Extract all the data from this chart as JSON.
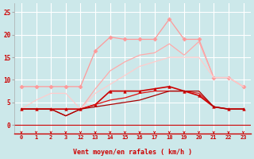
{
  "bg_color": "#cce8ea",
  "grid_color": "#ffffff",
  "xlabel": "Vent moyen/en rafales ( km/h )",
  "xlabel_color": "#cc0000",
  "tick_color": "#cc0000",
  "ylim": [
    -2,
    27
  ],
  "yticks": [
    0,
    5,
    10,
    15,
    20,
    25
  ],
  "x_labels": [
    "0",
    "1",
    "2",
    "3",
    "12",
    "13",
    "14",
    "15",
    "16",
    "17",
    "18",
    "19",
    "20",
    "21",
    "22",
    "23"
  ],
  "x_positions": [
    0,
    1,
    2,
    3,
    4,
    5,
    6,
    7,
    8,
    9,
    10,
    11,
    12,
    13,
    14,
    15
  ],
  "lines": [
    {
      "name": "rafales_pink_marker",
      "color": "#ff9999",
      "linewidth": 0.9,
      "marker": "D",
      "markersize": 2.5,
      "x": [
        0,
        1,
        2,
        3,
        4,
        5,
        6,
        7,
        8,
        9,
        10,
        11,
        12,
        13,
        14,
        15
      ],
      "y": [
        8.5,
        8.5,
        8.5,
        8.5,
        8.5,
        16.5,
        19.5,
        19,
        19,
        19,
        23.5,
        19,
        19,
        10.5,
        10.5,
        8.5
      ]
    },
    {
      "name": "rafales_pink2",
      "color": "#ffaaaa",
      "linewidth": 0.9,
      "marker": null,
      "x": [
        0,
        1,
        2,
        3,
        4,
        5,
        6,
        7,
        8,
        9,
        10,
        11,
        12,
        13,
        14,
        15
      ],
      "y": [
        3.5,
        3.5,
        3.5,
        3.5,
        3.5,
        8,
        12,
        14,
        15.5,
        16,
        18,
        15.5,
        18.5,
        10.5,
        10.5,
        8.5
      ]
    },
    {
      "name": "moyen_light",
      "color": "#ffcccc",
      "linewidth": 0.9,
      "marker": null,
      "x": [
        0,
        1,
        2,
        3,
        4,
        5,
        6,
        7,
        8,
        9,
        10,
        11,
        12,
        13,
        14,
        15
      ],
      "y": [
        3.5,
        5.5,
        7,
        7,
        3.5,
        7,
        9,
        11,
        13,
        14,
        15,
        15,
        15,
        10.5,
        10.5,
        8.5
      ]
    },
    {
      "name": "moyen_dark_marker",
      "color": "#cc0000",
      "linewidth": 1.2,
      "marker": "^",
      "markersize": 2.5,
      "x": [
        0,
        1,
        2,
        3,
        4,
        5,
        6,
        7,
        8,
        9,
        10,
        11,
        12,
        13,
        14,
        15
      ],
      "y": [
        3.5,
        3.5,
        3.5,
        3.5,
        3.5,
        4.5,
        7.5,
        7.5,
        7.5,
        8,
        8.5,
        7.5,
        6.5,
        4,
        3.5,
        3.5
      ]
    },
    {
      "name": "moyen_dark2",
      "color": "#dd1111",
      "linewidth": 0.9,
      "marker": null,
      "x": [
        0,
        1,
        2,
        3,
        4,
        5,
        6,
        7,
        8,
        9,
        10,
        11,
        12,
        13,
        14,
        15
      ],
      "y": [
        3.5,
        3.5,
        3.5,
        2.0,
        3.5,
        4.5,
        5.5,
        6,
        7,
        7.5,
        7.5,
        7.5,
        7,
        4,
        3.5,
        3.5
      ]
    },
    {
      "name": "moyen_dark3",
      "color": "#aa0000",
      "linewidth": 0.9,
      "marker": null,
      "x": [
        0,
        1,
        2,
        3,
        4,
        5,
        6,
        7,
        8,
        9,
        10,
        11,
        12,
        13,
        14,
        15
      ],
      "y": [
        3.5,
        3.5,
        3.5,
        2.0,
        3.5,
        4,
        4.5,
        5,
        5.5,
        6.5,
        7.5,
        7.5,
        7.5,
        4,
        3.5,
        3.5
      ]
    }
  ]
}
